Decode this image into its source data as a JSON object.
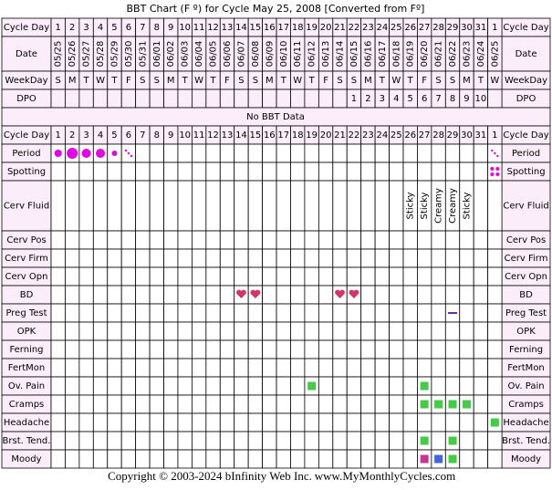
{
  "title": "BBT Chart (F º) for Cycle May 25, 2008  [Converted from Fº]",
  "header": {
    "cycle_day_label": "Cycle Day",
    "days": [
      1,
      2,
      3,
      4,
      5,
      6,
      7,
      8,
      9,
      10,
      11,
      12,
      13,
      14,
      15,
      16,
      17,
      18,
      19,
      20,
      21,
      22,
      23,
      24,
      25,
      26,
      27,
      28,
      29,
      30,
      31,
      1
    ],
    "date_label": "Date",
    "dates": [
      "05/25",
      "05/26",
      "05/27",
      "05/28",
      "05/29",
      "05/30",
      "05/31",
      "06/01",
      "06/02",
      "06/03",
      "06/04",
      "06/05",
      "06/06",
      "06/07",
      "06/08",
      "06/09",
      "06/10",
      "06/11",
      "06/12",
      "06/13",
      "06/14",
      "06/15",
      "06/16",
      "06/17",
      "06/18",
      "06/19",
      "06/20",
      "06/21",
      "06/22",
      "06/23",
      "06/24",
      "06/25"
    ],
    "weekday_label": "WeekDay",
    "weekdays": [
      "S",
      "M",
      "T",
      "W",
      "T",
      "F",
      "S",
      "S",
      "M",
      "T",
      "W",
      "T",
      "F",
      "S",
      "S",
      "M",
      "T",
      "W",
      "T",
      "F",
      "S",
      "S",
      "M",
      "T",
      "W",
      "T",
      "F",
      "S",
      "S",
      "M",
      "T",
      "W"
    ],
    "dpo_label": "DPO",
    "dpo": [
      null,
      null,
      null,
      null,
      null,
      null,
      null,
      null,
      null,
      null,
      null,
      null,
      null,
      null,
      null,
      null,
      null,
      null,
      null,
      null,
      null,
      1,
      2,
      3,
      4,
      5,
      6,
      7,
      8,
      9,
      10,
      null
    ]
  },
  "bbt_note": "No BBT Data",
  "rows": [
    "Period",
    "Spotting",
    "Cerv Fluid",
    "Cerv Pos",
    "Cerv Firm",
    "Cerv Opn",
    "BD",
    "Preg Test",
    "OPK",
    "Ferning",
    "FertMon",
    "Ov. Pain",
    "Cramps",
    "Headache",
    "Brst. Tend.",
    "Moody"
  ],
  "cerv_fluid": [
    null,
    null,
    null,
    null,
    null,
    null,
    null,
    null,
    null,
    null,
    null,
    null,
    null,
    null,
    null,
    null,
    null,
    null,
    null,
    null,
    null,
    null,
    null,
    null,
    null,
    "Sticky",
    "Sticky",
    "Creamy",
    "Creamy",
    "Sticky",
    null,
    null
  ],
  "footer": {
    "copyright": "Copyright © 2003-2024 bInfinity Web Inc.",
    "website": "www.MyMonthlyCycles.com"
  }
}
